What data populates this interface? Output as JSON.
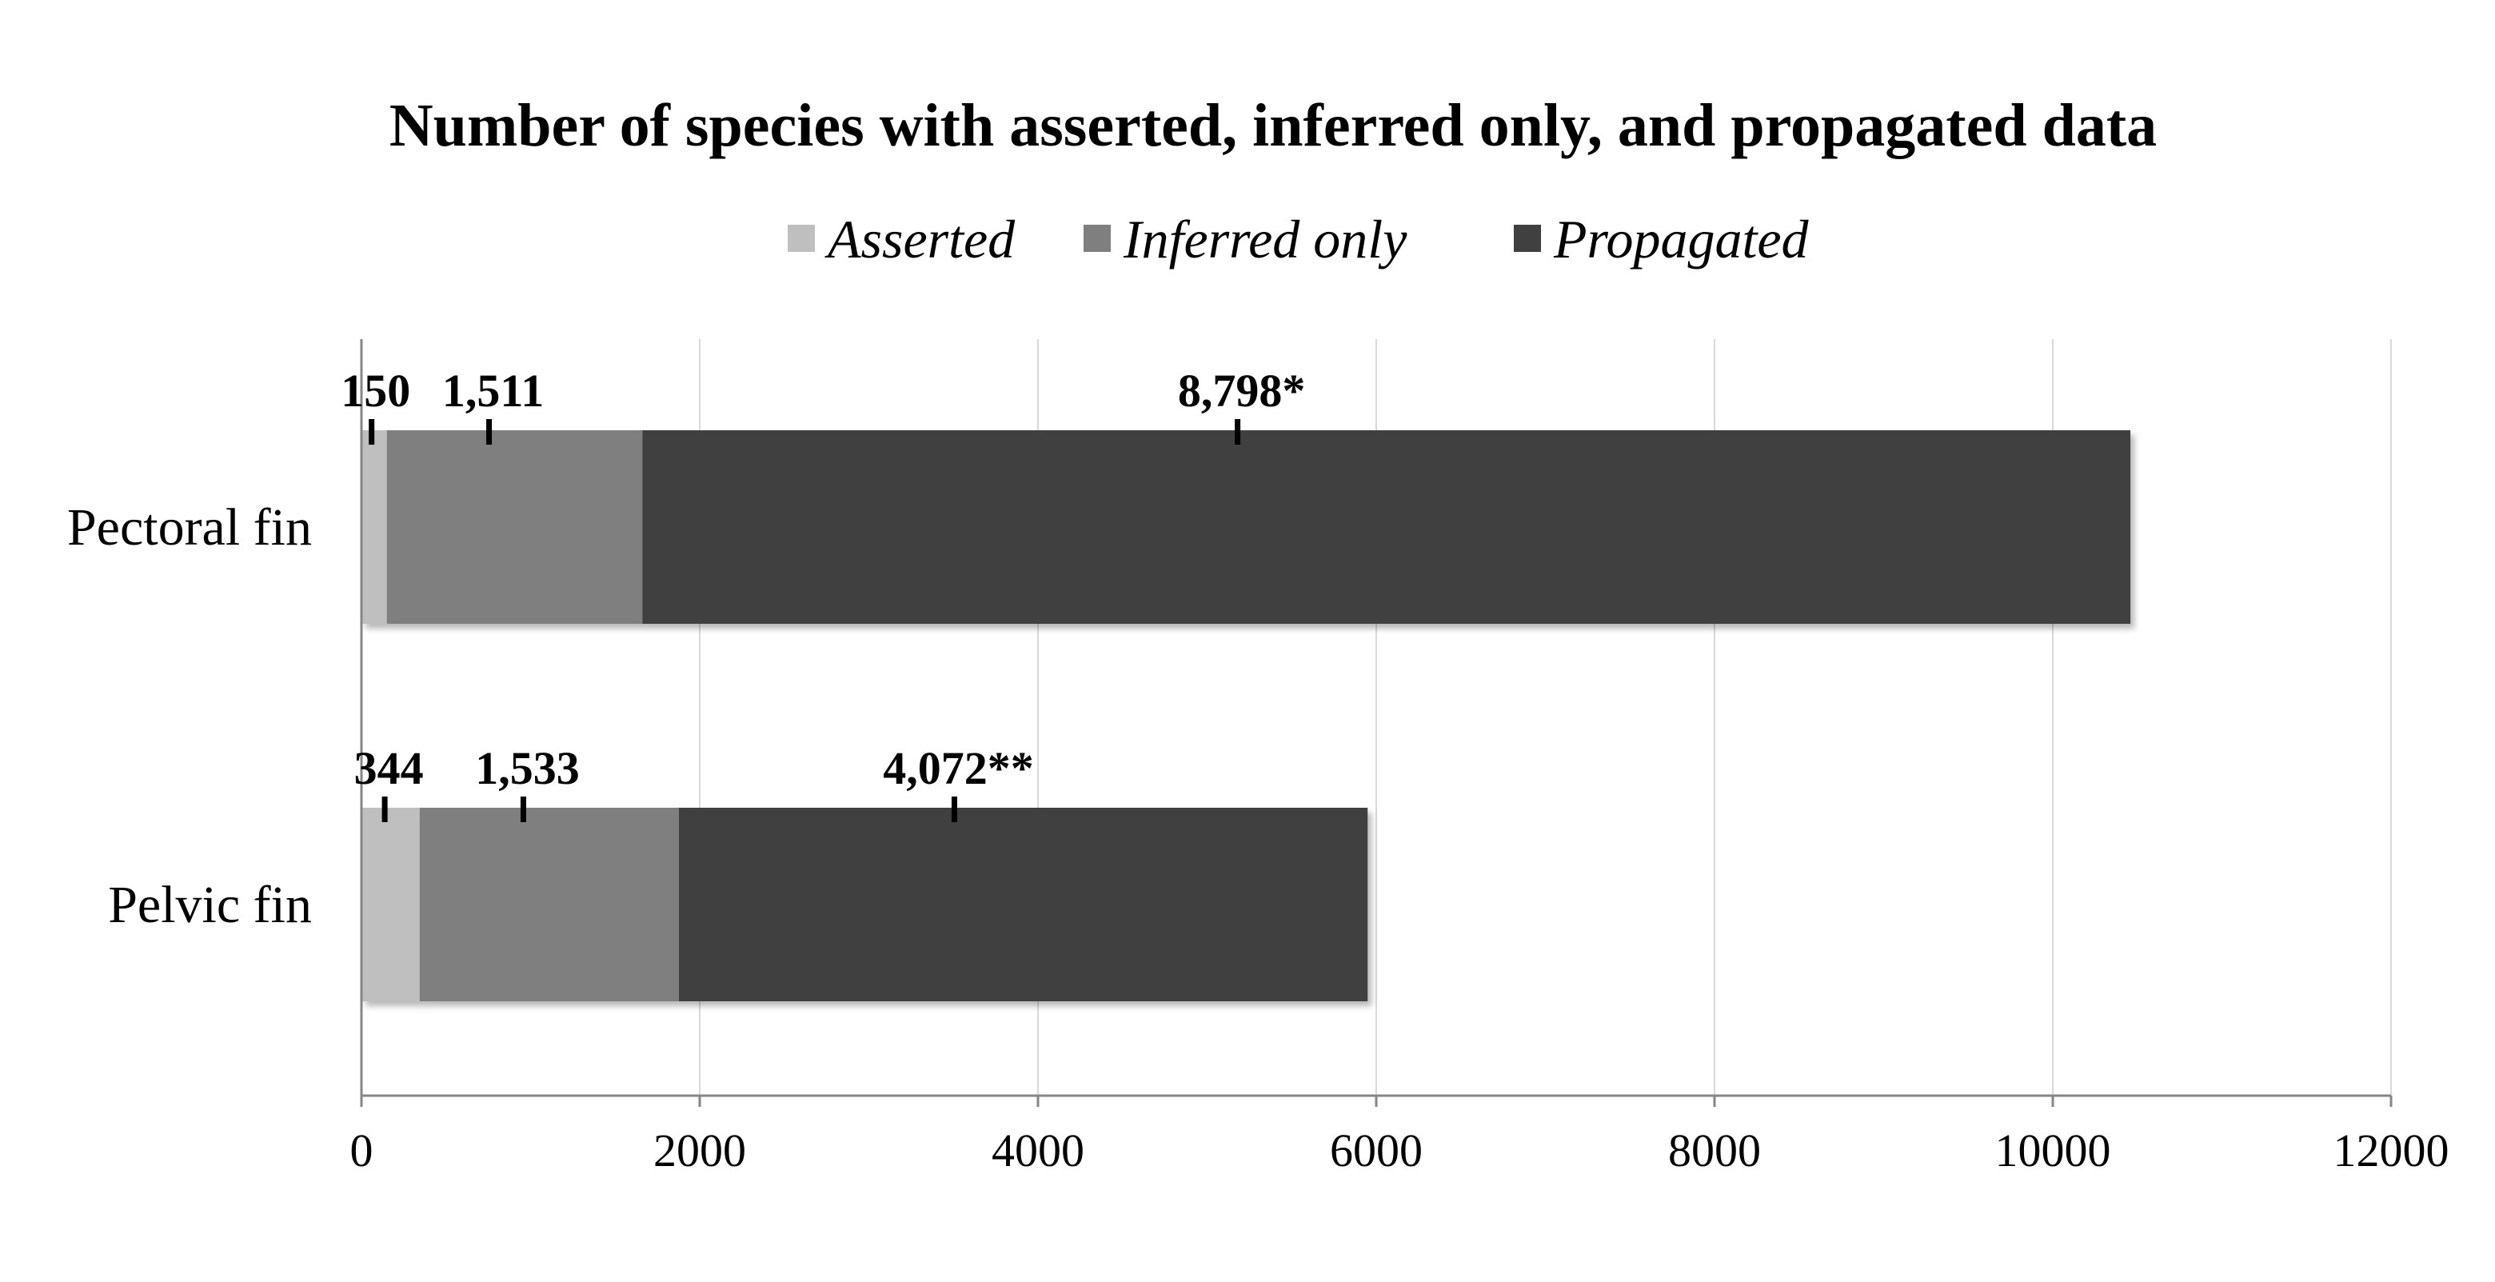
{
  "chart_data": {
    "type": "bar",
    "orientation": "horizontal",
    "stacked": true,
    "title": "Number of species with asserted, inferred only, and propagated data",
    "xlabel": "",
    "ylabel": "",
    "categories": [
      "Pectoral fin",
      "Pelvic fin"
    ],
    "series": [
      {
        "name": "Asserted",
        "values": [
          150,
          344
        ],
        "color": "#bfbfbf"
      },
      {
        "name": "Inferred only",
        "values": [
          1511,
          1533
        ],
        "color": "#7f7f7f"
      },
      {
        "name": "Propagated",
        "values": [
          8798,
          4072
        ],
        "color": "#404040"
      }
    ],
    "data_labels": [
      [
        "150",
        "1,511",
        "8,798*"
      ],
      [
        "344",
        "1,533",
        "4,072**"
      ]
    ],
    "xlim": [
      0,
      12000
    ],
    "xticks": [
      0,
      2000,
      4000,
      6000,
      8000,
      10000,
      12000
    ],
    "xtick_labels": [
      "0",
      "2000",
      "4000",
      "6000",
      "8000",
      "10000",
      "12000"
    ],
    "grid": "vertical",
    "legend_position": "top"
  }
}
